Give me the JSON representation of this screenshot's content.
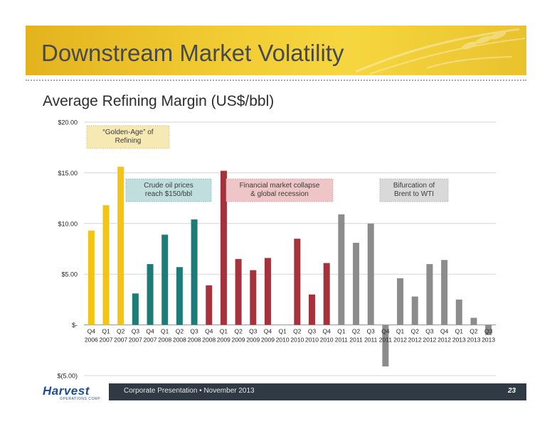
{
  "slide": {
    "title": "Downstream Market Volatility",
    "subtitle": "Average Refining Margin (US$/bbl)",
    "footer": "Corporate Presentation • November 2013",
    "page_number": "23",
    "logo_text": "Harvest",
    "logo_subtext": "OPERATIONS CORP"
  },
  "colors": {
    "banner": "#f2cc33",
    "title_text": "#444a4f",
    "footer_bar": "#2f3a44",
    "logo_blue": "#1d4d9a"
  },
  "chart_data": {
    "type": "bar",
    "title": "Average Refining Margin (US$/bbl)",
    "xlabel": "",
    "ylabel": "",
    "ylim": [
      -5,
      20
    ],
    "yticks": [
      20,
      15,
      10,
      5,
      0,
      -5
    ],
    "ytick_labels": [
      "$20.00",
      "$15.00",
      "$10.00",
      "$5.00",
      "$-",
      "$(5.00)"
    ],
    "grid": true,
    "categories": [
      [
        "Q4",
        "2006"
      ],
      [
        "Q1",
        "2007"
      ],
      [
        "Q2",
        "2007"
      ],
      [
        "Q3",
        "2007"
      ],
      [
        "Q4",
        "2007"
      ],
      [
        "Q1",
        "2008"
      ],
      [
        "Q2",
        "2008"
      ],
      [
        "Q3",
        "2008"
      ],
      [
        "Q4",
        "2008"
      ],
      [
        "Q1",
        "2009"
      ],
      [
        "Q2",
        "2009"
      ],
      [
        "Q3",
        "2009"
      ],
      [
        "Q4",
        "2009"
      ],
      [
        "Q1",
        "2010"
      ],
      [
        "Q2",
        "2010"
      ],
      [
        "Q3",
        "2010"
      ],
      [
        "Q4",
        "2010"
      ],
      [
        "Q1",
        "2011"
      ],
      [
        "Q2",
        "2011"
      ],
      [
        "Q3",
        "2011"
      ],
      [
        "Q4",
        "2011"
      ],
      [
        "Q1",
        "2012"
      ],
      [
        "Q2",
        "2012"
      ],
      [
        "Q3",
        "2012"
      ],
      [
        "Q4",
        "2012"
      ],
      [
        "Q1",
        "2013"
      ],
      [
        "Q2",
        "2013"
      ],
      [
        "Q3",
        "2013"
      ]
    ],
    "values": [
      9.3,
      11.8,
      15.6,
      3.1,
      6.0,
      8.9,
      5.7,
      10.4,
      3.9,
      15.2,
      6.5,
      5.4,
      6.6,
      null,
      8.5,
      3.0,
      6.1,
      10.9,
      8.1,
      10.0,
      -4.1,
      4.6,
      2.8,
      6.0,
      6.4,
      2.5,
      0.7,
      -1.0
    ],
    "bar_colors": [
      "#f3c415",
      "#f3c415",
      "#f3c415",
      "#1e7c78",
      "#1e7c78",
      "#1e7c78",
      "#1e7c78",
      "#1e7c78",
      "#a8323c",
      "#a8323c",
      "#a8323c",
      "#a8323c",
      "#a8323c",
      "#a8323c",
      "#a8323c",
      "#a8323c",
      "#a8323c",
      "#8c8c8c",
      "#8c8c8c",
      "#8c8c8c",
      "#8c8c8c",
      "#8c8c8c",
      "#8c8c8c",
      "#8c8c8c",
      "#8c8c8c",
      "#8c8c8c",
      "#8c8c8c",
      "#8c8c8c"
    ],
    "annotations": [
      {
        "lines": [
          "“Golden-Age” of",
          "Refining"
        ],
        "fill": "#f6e9b4",
        "border": "#d9c47a",
        "text_color": "#3a3a3a"
      },
      {
        "lines": [
          "Crude oil prices",
          "reach $150/bbl"
        ],
        "fill": "#bfdedd",
        "border": "#8fbfbd",
        "text_color": "#3a3a3a"
      },
      {
        "lines": [
          "Financial market collapse",
          "& global recession"
        ],
        "fill": "#eec6c8",
        "border": "#d9a2a5",
        "text_color": "#3a3a3a"
      },
      {
        "lines": [
          "Bifurcation of",
          "Brent to WTI"
        ],
        "fill": "#d9d9d9",
        "border": "#b5b5b5",
        "text_color": "#3a3a3a"
      }
    ]
  }
}
